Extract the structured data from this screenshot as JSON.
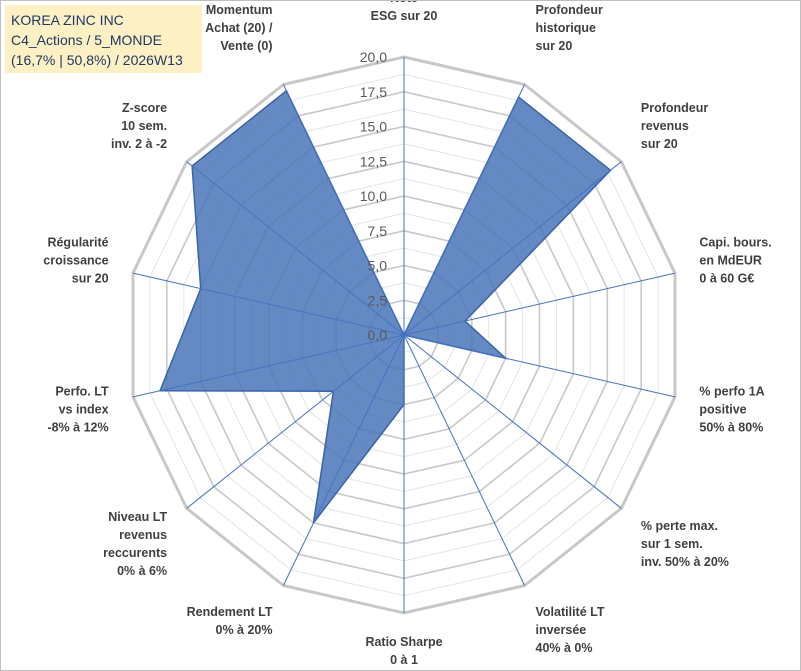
{
  "header": {
    "company": "KOREA ZINC INC",
    "category": "C4_Actions / 5_MONDE",
    "stats": "(16,7% | 50,8%) / 2026W13"
  },
  "colors": {
    "fill": "#4a76b8",
    "stroke": "#3a64a8",
    "axis": "#4472c4",
    "grid_major": "#c8c8c8",
    "grid_minor": "#e4e4e4",
    "title_bg": "#fdf0c4"
  },
  "chart_data": {
    "type": "radar",
    "title": "",
    "rmin": 0,
    "rmax": 20,
    "major_step": 2.5,
    "minor_step": 1.25,
    "tick_labels": [
      "0,0",
      "2,5",
      "5,0",
      "7,5",
      "10,0",
      "12,5",
      "15,0",
      "17,5",
      "20,0"
    ],
    "axes": [
      {
        "lines": [
          "Note",
          "ESG sur 20"
        ],
        "value": 0
      },
      {
        "lines": [
          "Profondeur",
          "historique",
          "sur 20"
        ],
        "value": 19.0
      },
      {
        "lines": [
          "Profondeur",
          "revenus",
          "sur 20"
        ],
        "value": 19.0
      },
      {
        "lines": [
          "Capi. bours.",
          "en MdEUR",
          "0 à 60 G€"
        ],
        "value": 4.5
      },
      {
        "lines": [
          "% perfo 1A",
          "positive",
          "50% à 80%"
        ],
        "value": 7.5
      },
      {
        "lines": [
          "% perte max.",
          "sur 1 sem.",
          "inv. 50% à 20%"
        ],
        "value": 0
      },
      {
        "lines": [
          "Volatilité LT",
          "inversée",
          "40% à 0%"
        ],
        "value": 0
      },
      {
        "lines": [
          "Ratio Sharpe",
          "0 à 1"
        ],
        "value": 5.0
      },
      {
        "lines": [
          "Rendement LT",
          "0% à 20%"
        ],
        "value": 15.0
      },
      {
        "lines": [
          "Niveau LT",
          "revenus",
          "reccurents",
          "0% à 6%"
        ],
        "value": 6.5
      },
      {
        "lines": [
          "Perfo. LT",
          "vs index",
          "-8% à 12%"
        ],
        "value": 18.0
      },
      {
        "lines": [
          "Régularité",
          "croissance",
          "sur 20"
        ],
        "value": 15.0
      },
      {
        "lines": [
          "Z-score",
          "10 sem.",
          "inv. 2 à -2"
        ],
        "value": 19.5
      },
      {
        "lines": [
          "Momentum",
          "Achat (20) /",
          "Vente (0)"
        ],
        "value": 19.5
      }
    ]
  }
}
